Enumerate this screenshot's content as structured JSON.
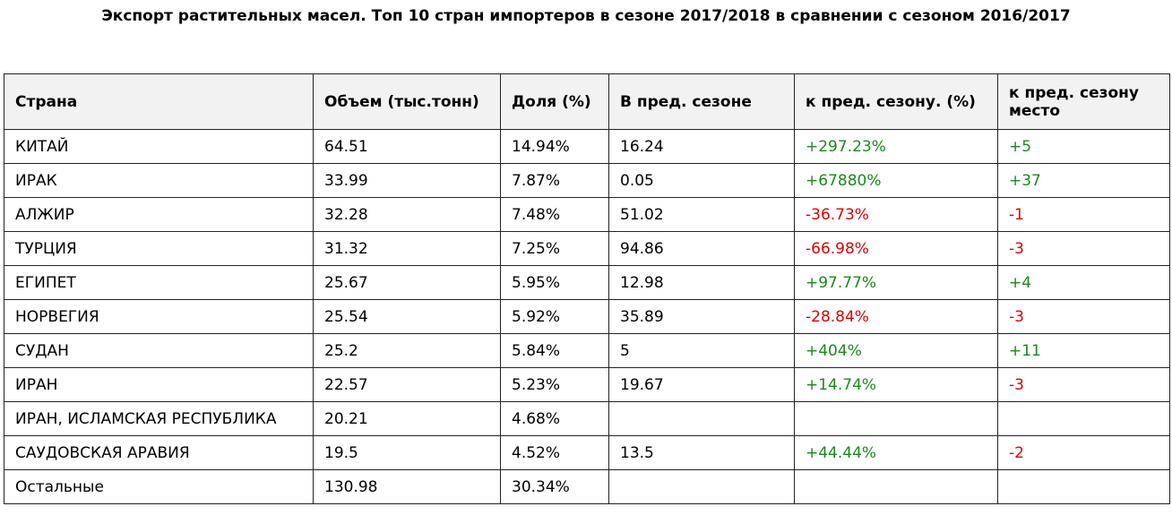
{
  "header": {
    "title": "Экспорт растительных масел. Топ 10 стран импортеров в сезоне 2017/2018 в сравнении с сезоном 2016/2017"
  },
  "table": {
    "columns": [
      "Страна",
      "Объем (тыс.тонн)",
      "Доля (%)",
      "В пред. сезоне",
      "к пред. сезону. (%)",
      "к пред. сезону место"
    ],
    "rows": [
      [
        "КИТАЙ",
        "64.51",
        "14.94%",
        "16.24",
        "+297.23%",
        "+5"
      ],
      [
        "ИРАК",
        "33.99",
        "7.87%",
        "0.05",
        "+67880%",
        "+37"
      ],
      [
        "АЛЖИР",
        "32.28",
        "7.48%",
        "51.02",
        "-36.73%",
        "-1"
      ],
      [
        "ТУРЦИЯ",
        "31.32",
        "7.25%",
        "94.86",
        "-66.98%",
        "-3"
      ],
      [
        "ЕГИПЕТ",
        "25.67",
        "5.95%",
        "12.98",
        "+97.77%",
        "+4"
      ],
      [
        "НОРВЕГИЯ",
        "25.54",
        "5.92%",
        "35.89",
        "-28.84%",
        "-3"
      ],
      [
        "СУДАН",
        "25.2",
        "5.84%",
        "5",
        "+404%",
        "+11"
      ],
      [
        "ИРАН",
        "22.57",
        "5.23%",
        "19.67",
        "+14.74%",
        "-3"
      ],
      [
        "ИРАН, ИСЛАМСКАЯ РЕСПУБЛИКА",
        "20.21",
        "4.68%",
        null,
        null,
        null
      ],
      [
        "САУДОВСКАЯ АРАВИЯ",
        "19.5",
        "4.52%",
        "13.5",
        "+44.44%",
        "-2"
      ],
      [
        "Остальные",
        "130.98",
        "30.34%",
        null,
        null,
        null
      ]
    ]
  }
}
